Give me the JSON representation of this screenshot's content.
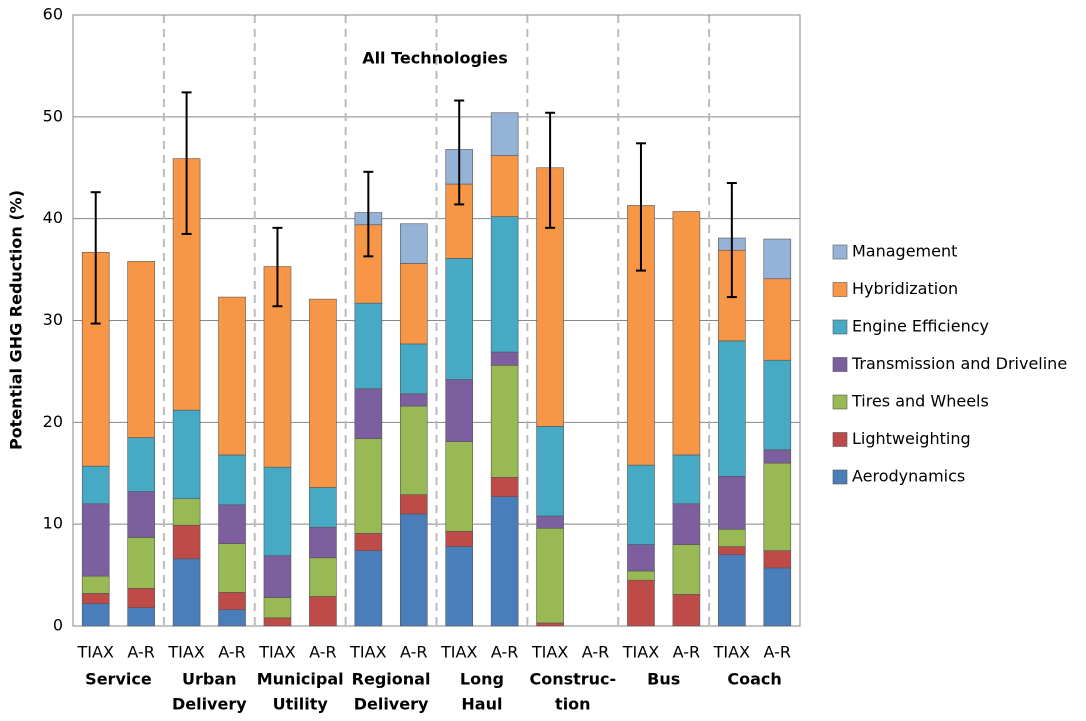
{
  "chart_data": {
    "type": "stacked_bar",
    "title": "All Technologies",
    "y_label": "Potential GHG Reduction (%)",
    "categories": [
      "TIAX",
      "A-R",
      "TIAX",
      "A-R",
      "TIAX",
      "A-R",
      "TIAX",
      "A-R",
      "TIAX",
      "A-R",
      "TIAX",
      "A-R",
      "TIAX",
      "A-R",
      "TIAX",
      "A-R"
    ],
    "groups": [
      [
        "Service"
      ],
      [
        "Urban",
        "Delivery"
      ],
      [
        "Municipal",
        "Utility"
      ],
      [
        "Regional",
        "Delivery"
      ],
      [
        "Long",
        "Haul"
      ],
      [
        "Construc-",
        "tion"
      ],
      [
        "Bus"
      ],
      [
        "Coach"
      ]
    ],
    "series": [
      {
        "name": "Aerodynamics",
        "color": "#4a7ebb",
        "values": [
          2.2,
          1.8,
          6.6,
          1.6,
          0,
          0,
          7.4,
          11.0,
          7.8,
          12.7,
          0,
          null,
          0,
          0,
          7.0,
          5.7
        ]
      },
      {
        "name": "Lightweighting",
        "color": "#be4b48",
        "values": [
          1.0,
          1.9,
          3.3,
          1.7,
          0.8,
          2.9,
          1.7,
          1.9,
          1.5,
          1.9,
          0.3,
          null,
          4.5,
          3.1,
          0.8,
          1.7
        ]
      },
      {
        "name": "Tires and Wheels",
        "color": "#98b954",
        "values": [
          1.7,
          5.0,
          2.6,
          4.8,
          2.0,
          3.8,
          9.3,
          8.7,
          8.8,
          11.0,
          9.3,
          null,
          0.9,
          4.9,
          1.7,
          8.6
        ]
      },
      {
        "name": "Transmission and Driveline",
        "color": "#7d5fa0",
        "values": [
          7.1,
          4.5,
          0,
          3.8,
          4.1,
          3.0,
          4.9,
          1.2,
          6.1,
          1.3,
          1.2,
          null,
          2.6,
          4.0,
          5.2,
          1.3
        ]
      },
      {
        "name": "Engine Efficiency",
        "color": "#46aac5",
        "values": [
          3.7,
          5.3,
          8.7,
          4.9,
          8.7,
          3.9,
          8.4,
          4.9,
          11.9,
          13.3,
          8.8,
          null,
          7.8,
          4.8,
          13.3,
          8.8
        ]
      },
      {
        "name": "Hybridization",
        "color": "#f79646",
        "values": [
          21.0,
          17.3,
          24.7,
          15.5,
          19.7,
          18.5,
          7.7,
          7.9,
          7.3,
          6.0,
          25.4,
          null,
          25.5,
          23.9,
          8.9,
          8.0
        ]
      },
      {
        "name": "Management",
        "color": "#95b3d7",
        "values": [
          0,
          0,
          0,
          0,
          0,
          0,
          1.2,
          3.9,
          3.4,
          4.2,
          0,
          null,
          0,
          0,
          1.2,
          3.9
        ]
      }
    ],
    "error_bars": {
      "low": [
        29.7,
        null,
        38.5,
        null,
        31.4,
        null,
        36.3,
        null,
        41.4,
        null,
        39.1,
        null,
        34.9,
        null,
        32.3,
        null
      ],
      "high": [
        42.6,
        null,
        52.4,
        null,
        39.1,
        null,
        44.6,
        null,
        51.6,
        null,
        50.4,
        null,
        47.4,
        null,
        43.5,
        null
      ]
    },
    "ylim": [
      0,
      60
    ],
    "yticks": [
      0,
      10,
      20,
      30,
      40,
      50,
      60
    ],
    "grid": true,
    "legend": "right"
  }
}
